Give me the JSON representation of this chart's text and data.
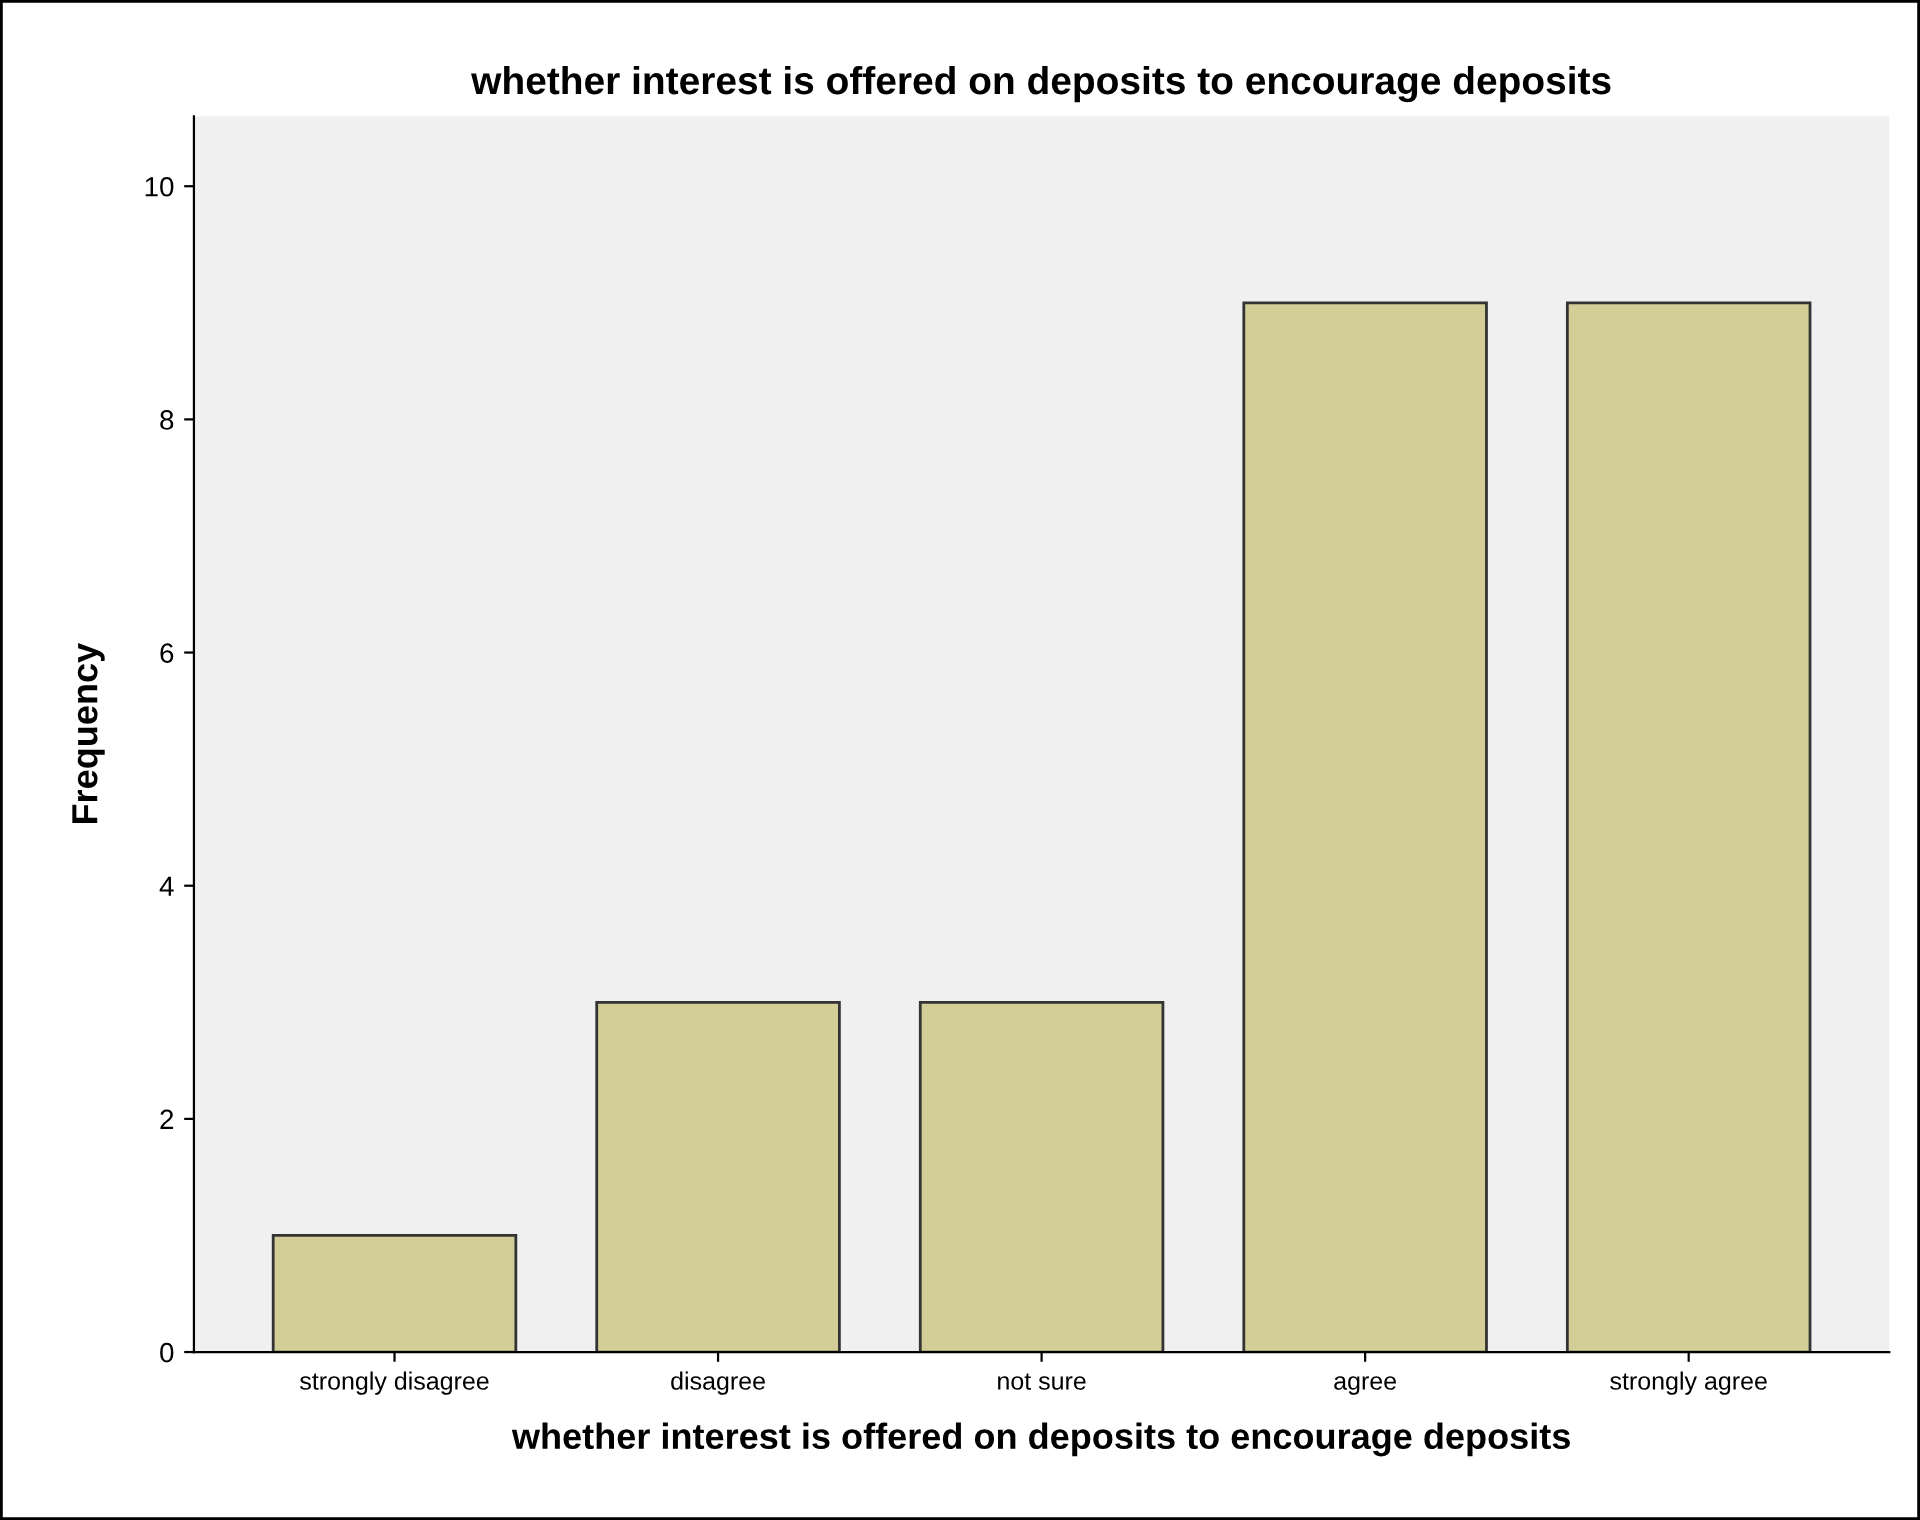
{
  "chart_data": {
    "type": "bar",
    "title": "whether interest is offered on deposits to encourage deposits",
    "xlabel": "whether interest is offered on deposits to encourage deposits",
    "ylabel": "Frequency",
    "categories": [
      "strongly disagree",
      "disagree",
      "not sure",
      "agree",
      "strongly agree"
    ],
    "values": [
      1,
      3,
      3,
      9,
      9
    ],
    "color": "#d3ce97",
    "ylim": [
      0,
      10.6
    ],
    "yticks": [
      0,
      2,
      4,
      6,
      8,
      10
    ],
    "grid": false,
    "legend": false
  }
}
